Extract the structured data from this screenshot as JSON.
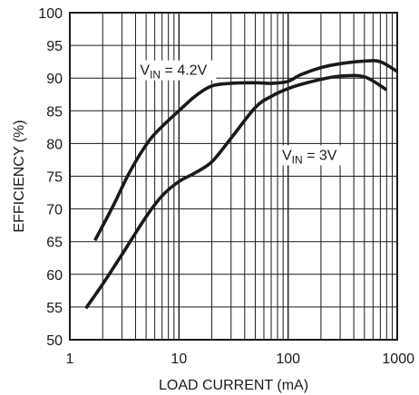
{
  "chart_data": {
    "type": "line",
    "title": "",
    "xlabel": "LOAD CURRENT (mA)",
    "ylabel": "EFFICIENCY (%)",
    "x_scale": "log",
    "xlim": [
      1,
      1000
    ],
    "ylim": [
      50,
      100
    ],
    "x_ticks": [
      1,
      10,
      100,
      1000
    ],
    "x_tick_labels": [
      "1",
      "10",
      "100",
      "1000"
    ],
    "y_ticks": [
      50,
      55,
      60,
      65,
      70,
      75,
      80,
      85,
      90,
      95,
      100
    ],
    "y_tick_labels": [
      "50",
      "55",
      "60",
      "65",
      "70",
      "75",
      "80",
      "85",
      "90",
      "95",
      "100"
    ],
    "grid": true,
    "series": [
      {
        "name": "VIN = 4.2V",
        "label_main": "V",
        "label_sub": "IN",
        "label_rest": " = 4.2V",
        "color": "#1a1a1a",
        "x": [
          1.7,
          2.5,
          3.5,
          5.2,
          7,
          10,
          14,
          20,
          30,
          50,
          70,
          100,
          130,
          200,
          300,
          500,
          700,
          1000
        ],
        "y": [
          65.2,
          70.5,
          75.5,
          80.2,
          82.6,
          85,
          87.2,
          88.8,
          89.2,
          89.3,
          89.2,
          89.5,
          90.5,
          91.6,
          92.2,
          92.6,
          92.5,
          91
        ]
      },
      {
        "name": "VIN = 3V",
        "label_main": "V",
        "label_sub": "IN",
        "label_rest": " = 3V",
        "color": "#1a1a1a",
        "x": [
          1.4,
          2,
          3,
          5,
          7,
          10,
          14,
          20,
          30,
          50,
          70,
          100,
          150,
          200,
          300,
          500,
          800
        ],
        "y": [
          54.8,
          58.5,
          63,
          68.8,
          72,
          74.2,
          75.5,
          77.2,
          80.8,
          85.5,
          87.2,
          88.4,
          89.3,
          89.8,
          90.3,
          90.2,
          88.2
        ]
      }
    ]
  }
}
